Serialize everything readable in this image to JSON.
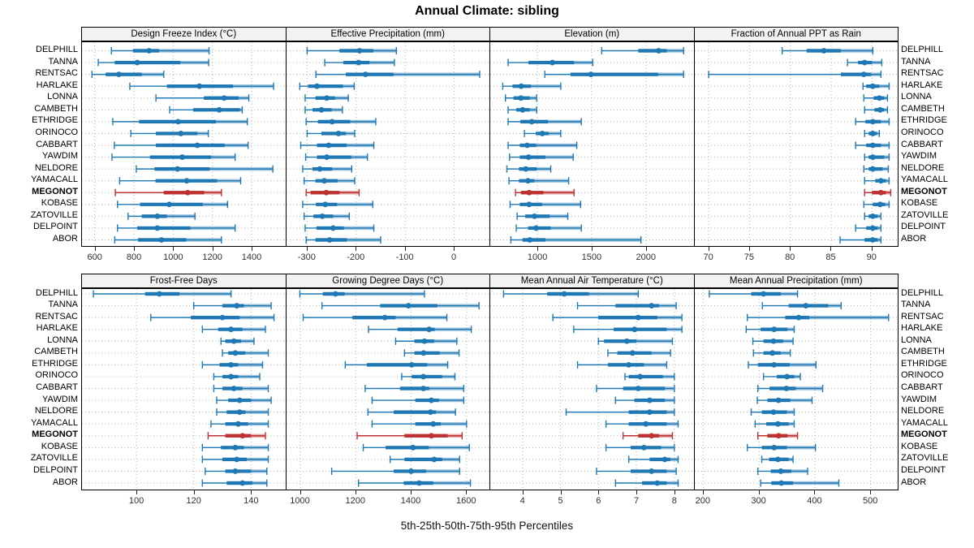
{
  "title": "Annual Climate: sibling",
  "caption": "5th-25th-50th-75th-95th Percentiles",
  "chart_data": {
    "type": "trellis_percentile_dotplot",
    "title": "Annual Climate: sibling",
    "caption": "5th-25th-50th-75th-95th Percentiles",
    "percentile_levels": [
      5,
      25,
      50,
      75,
      95
    ],
    "legend_position": "none",
    "grid": "dotted",
    "sites": [
      "DELPHILL",
      "TANNA",
      "RENTSAC",
      "HARLAKE",
      "LONNA",
      "CAMBETH",
      "ETHRIDGE",
      "ORINOCO",
      "CABBART",
      "YAWDIM",
      "NELDORE",
      "YAMACALL",
      "MEGONOT",
      "KOBASE",
      "ZATOVILLE",
      "DELPOINT",
      "ABOR"
    ],
    "highlighted_site": "MEGONOT",
    "colors": {
      "series": "#1f78b4",
      "series_light": "#1f78b4",
      "highlight": "#bd3131",
      "strip_bg": "#f2f2f2",
      "gridline": "#b3b3b3",
      "panel_border": "#000000",
      "tick_text": "#303030"
    },
    "panels": [
      {
        "title": "Design Freeze Index (°C)",
        "row": 0,
        "col": 0,
        "ticks": [
          600,
          800,
          1000,
          1200,
          1400
        ],
        "xlim": [
          535,
          1580
        ],
        "values": [
          [
            685,
            795,
            877,
            928,
            1183
          ],
          [
            618,
            702,
            817,
            1036,
            1181
          ],
          [
            586,
            656,
            723,
            840,
            952
          ],
          [
            779,
            968,
            1134,
            1305,
            1512
          ],
          [
            912,
            1157,
            1260,
            1333,
            1386
          ],
          [
            982,
            1102,
            1235,
            1340,
            1352
          ],
          [
            692,
            826,
            1025,
            1218,
            1378
          ],
          [
            784,
            912,
            1039,
            1123,
            1179
          ],
          [
            700,
            912,
            1123,
            1263,
            1382
          ],
          [
            688,
            882,
            1046,
            1193,
            1316
          ],
          [
            812,
            905,
            1022,
            1186,
            1508
          ],
          [
            727,
            910,
            1069,
            1224,
            1344
          ],
          [
            705,
            952,
            1074,
            1158,
            1246
          ],
          [
            716,
            831,
            980,
            1151,
            1277
          ],
          [
            770,
            840,
            919,
            968,
            1111
          ],
          [
            716,
            817,
            919,
            1088,
            1316
          ],
          [
            702,
            821,
            940,
            1067,
            1246
          ]
        ]
      },
      {
        "title": "Effective Precipitation (mm)",
        "row": 0,
        "col": 1,
        "ticks": [
          -300,
          -200,
          -100,
          0
        ],
        "xlim": [
          -342,
          76
        ],
        "values": [
          [
            -300,
            -234,
            -193,
            -165,
            -118
          ],
          [
            -264,
            -226,
            -195,
            -173,
            -122
          ],
          [
            -282,
            -221,
            -181,
            -124,
            52
          ],
          [
            -315,
            -298,
            -280,
            -227,
            -204
          ],
          [
            -304,
            -283,
            -260,
            -243,
            -216
          ],
          [
            -304,
            -289,
            -271,
            -250,
            -228
          ],
          [
            -302,
            -278,
            -249,
            -212,
            -160
          ],
          [
            -300,
            -271,
            -236,
            -221,
            -203
          ],
          [
            -313,
            -280,
            -256,
            -219,
            -164
          ],
          [
            -303,
            -280,
            -260,
            -210,
            -177
          ],
          [
            -309,
            -289,
            -274,
            -249,
            -209
          ],
          [
            -306,
            -283,
            -265,
            -238,
            -203
          ],
          [
            -302,
            -293,
            -261,
            -234,
            -194
          ],
          [
            -309,
            -282,
            -263,
            -239,
            -166
          ],
          [
            -306,
            -287,
            -269,
            -247,
            -214
          ],
          [
            -304,
            -281,
            -247,
            -225,
            -164
          ],
          [
            -302,
            -283,
            -254,
            -219,
            -150
          ]
        ]
      },
      {
        "title": "Elevation (m)",
        "row": 0,
        "col": 2,
        "ticks": [
          1000,
          1500,
          2000
        ],
        "xlim": [
          565,
          2455
        ],
        "values": [
          [
            1593,
            1930,
            2118,
            2193,
            2348
          ],
          [
            730,
            918,
            1138,
            1338,
            1510
          ],
          [
            1068,
            1305,
            1493,
            2113,
            2348
          ],
          [
            680,
            770,
            850,
            940,
            1215
          ],
          [
            705,
            780,
            848,
            930,
            993
          ],
          [
            730,
            805,
            863,
            930,
            993
          ],
          [
            730,
            843,
            948,
            1098,
            1405
          ],
          [
            880,
            985,
            1045,
            1105,
            1215
          ],
          [
            730,
            838,
            905,
            988,
            1363
          ],
          [
            743,
            838,
            918,
            1073,
            1330
          ],
          [
            718,
            830,
            893,
            993,
            1123
          ],
          [
            738,
            830,
            913,
            973,
            1288
          ],
          [
            798,
            848,
            923,
            1055,
            1338
          ],
          [
            748,
            838,
            923,
            1043,
            1398
          ],
          [
            813,
            888,
            973,
            1113,
            1280
          ],
          [
            805,
            913,
            988,
            1123,
            1405
          ],
          [
            755,
            863,
            930,
            1073,
            1955
          ]
        ]
      },
      {
        "title": "Fraction of Annual PPT as Rain",
        "row": 0,
        "col": 3,
        "ticks": [
          70,
          75,
          80,
          85,
          90
        ],
        "xlim": [
          68.3,
          93.4
        ],
        "values": [
          [
            79.0,
            82.0,
            84.1,
            86.2,
            90.1
          ],
          [
            87.0,
            88.3,
            89.1,
            90.0,
            91.2
          ],
          [
            70.0,
            86.2,
            89.0,
            89.9,
            91.1
          ],
          [
            88.9,
            89.3,
            90.1,
            90.9,
            92.1
          ],
          [
            89.0,
            90.2,
            90.9,
            91.5,
            91.9
          ],
          [
            89.1,
            90.3,
            91.0,
            91.5,
            91.9
          ],
          [
            88.0,
            89.2,
            90.1,
            91.1,
            92.1
          ],
          [
            89.1,
            89.6,
            90.1,
            90.6,
            90.9
          ],
          [
            88.0,
            89.3,
            90.1,
            91.1,
            92.1
          ],
          [
            89.1,
            89.6,
            90.1,
            91.5,
            92.1
          ],
          [
            89.0,
            89.6,
            90.1,
            91.3,
            92.0
          ],
          [
            89.1,
            90.4,
            91.1,
            91.7,
            92.1
          ],
          [
            89.1,
            90.0,
            91.1,
            91.7,
            92.3
          ],
          [
            89.0,
            90.1,
            91.0,
            91.6,
            92.1
          ],
          [
            89.1,
            89.6,
            90.1,
            90.7,
            91.1
          ],
          [
            88.0,
            89.3,
            90.1,
            90.7,
            91.1
          ],
          [
            86.1,
            89.1,
            90.1,
            90.7,
            91.1
          ]
        ]
      },
      {
        "title": "Frost-Free Days",
        "row": 1,
        "col": 0,
        "ticks": [
          100,
          120,
          140
        ],
        "xlim": [
          81,
          152.5
        ],
        "values": [
          [
            85,
            103,
            108,
            115,
            133
          ],
          [
            120,
            130,
            135,
            137.5,
            147
          ],
          [
            105,
            119,
            130,
            136,
            148
          ],
          [
            123,
            128.5,
            133,
            137,
            145
          ],
          [
            129.5,
            131,
            134,
            136.5,
            141
          ],
          [
            130,
            132,
            134.5,
            138,
            146
          ],
          [
            123,
            129,
            133,
            135.5,
            144
          ],
          [
            127,
            130,
            133,
            135.5,
            143
          ],
          [
            127,
            130,
            134,
            137,
            146
          ],
          [
            128,
            132,
            136,
            140,
            147
          ],
          [
            128,
            131.5,
            136,
            138,
            146
          ],
          [
            126,
            131,
            135.5,
            139,
            146
          ],
          [
            125,
            131,
            137,
            140,
            145
          ],
          [
            123,
            129.5,
            134.5,
            137.5,
            146
          ],
          [
            123,
            130,
            135,
            138.5,
            146
          ],
          [
            124,
            131,
            134.5,
            140,
            145.5
          ],
          [
            123,
            131.5,
            137,
            140.5,
            145.5
          ]
        ]
      },
      {
        "title": "Growing Degree Days (°C)",
        "row": 1,
        "col": 1,
        "ticks": [
          1000,
          1200,
          1400,
          1600
        ],
        "xlim": [
          950,
          1690
        ],
        "values": [
          [
            998,
            1081,
            1127,
            1160,
            1448
          ],
          [
            1078,
            1288,
            1390,
            1495,
            1645
          ],
          [
            1010,
            1188,
            1305,
            1344,
            1529
          ],
          [
            1246,
            1351,
            1465,
            1485,
            1617
          ],
          [
            1344,
            1412,
            1448,
            1483,
            1565
          ],
          [
            1376,
            1412,
            1445,
            1503,
            1573
          ],
          [
            1162,
            1240,
            1402,
            1458,
            1532
          ],
          [
            1366,
            1402,
            1444,
            1512,
            1558
          ],
          [
            1234,
            1360,
            1444,
            1465,
            1590
          ],
          [
            1259,
            1415,
            1473,
            1500,
            1590
          ],
          [
            1244,
            1337,
            1470,
            1490,
            1560
          ],
          [
            1259,
            1415,
            1480,
            1507,
            1600
          ],
          [
            1205,
            1376,
            1473,
            1532,
            1584
          ],
          [
            1227,
            1308,
            1407,
            1464,
            1610
          ],
          [
            1324,
            1376,
            1483,
            1512,
            1575
          ],
          [
            1113,
            1337,
            1400,
            1454,
            1575
          ],
          [
            1210,
            1373,
            1429,
            1480,
            1614
          ]
        ]
      },
      {
        "title": "Mean Annual Air Temperature (°C)",
        "row": 1,
        "col": 2,
        "ticks": [
          4,
          5,
          6,
          7,
          8
        ],
        "xlim": [
          3.15,
          8.55
        ],
        "values": [
          [
            3.5,
            4.65,
            5.1,
            5.75,
            7.05
          ],
          [
            5.45,
            6.45,
            7.4,
            7.6,
            8.05
          ],
          [
            4.8,
            6.0,
            7.05,
            7.55,
            8.2
          ],
          [
            5.35,
            6.4,
            6.95,
            7.8,
            8.2
          ],
          [
            6.0,
            6.15,
            6.75,
            7.0,
            7.95
          ],
          [
            6.25,
            6.5,
            6.9,
            7.4,
            7.9
          ],
          [
            5.45,
            6.25,
            6.8,
            7.2,
            7.8
          ],
          [
            6.7,
            6.8,
            7.1,
            7.7,
            8.0
          ],
          [
            5.95,
            6.65,
            7.05,
            7.75,
            8.0
          ],
          [
            6.45,
            6.95,
            7.35,
            7.75,
            8.0
          ],
          [
            5.15,
            6.8,
            7.35,
            7.8,
            8.0
          ],
          [
            6.2,
            6.8,
            7.25,
            7.8,
            8.1
          ],
          [
            6.65,
            7.05,
            7.4,
            7.6,
            7.95
          ],
          [
            6.2,
            6.85,
            7.2,
            7.65,
            8.0
          ],
          [
            6.8,
            7.35,
            7.75,
            7.9,
            8.1
          ],
          [
            5.95,
            6.85,
            7.4,
            7.8,
            8.05
          ],
          [
            6.45,
            7.15,
            7.55,
            7.8,
            8.1
          ]
        ]
      },
      {
        "title": "Mean Annual Precipitation (mm)",
        "row": 1,
        "col": 3,
        "ticks": [
          200,
          300,
          400,
          500
        ],
        "xlim": [
          185,
          552
        ],
        "values": [
          [
            211,
            286,
            308,
            339,
            369
          ],
          [
            306,
            353,
            384,
            424,
            447
          ],
          [
            279,
            347,
            371,
            390,
            532
          ],
          [
            277,
            303,
            327,
            351,
            363
          ],
          [
            289,
            308,
            326,
            343,
            361
          ],
          [
            290,
            308,
            324,
            339,
            356
          ],
          [
            281,
            298,
            327,
            355,
            402
          ],
          [
            308,
            332,
            350,
            363,
            374
          ],
          [
            298,
            319,
            349,
            366,
            414
          ],
          [
            297,
            315,
            335,
            356,
            395
          ],
          [
            286,
            305,
            326,
            350,
            363
          ],
          [
            293,
            313,
            334,
            353,
            363
          ],
          [
            298,
            315,
            335,
            351,
            369
          ],
          [
            279,
            305,
            327,
            350,
            401
          ],
          [
            305,
            318,
            334,
            353,
            361
          ],
          [
            298,
            321,
            339,
            358,
            387
          ],
          [
            303,
            322,
            340,
            361,
            443
          ]
        ]
      }
    ]
  }
}
